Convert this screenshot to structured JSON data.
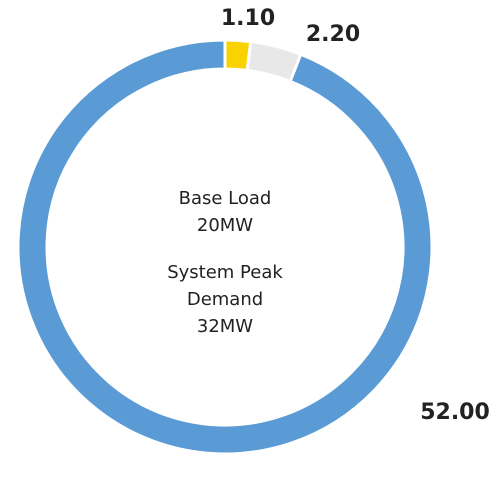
{
  "chart_data": {
    "type": "donut",
    "categories": [
      null,
      null,
      null
    ],
    "values": [
      1.1,
      2.2,
      52
    ],
    "value_labels": [
      "1.10",
      "2.20",
      "52.00"
    ],
    "colors": [
      "#fad200",
      "#e8e8e8",
      "#5b9bd5"
    ],
    "center_text": [
      "Base Load",
      "20MW",
      "System Peak",
      "Demand",
      "32MW"
    ]
  }
}
